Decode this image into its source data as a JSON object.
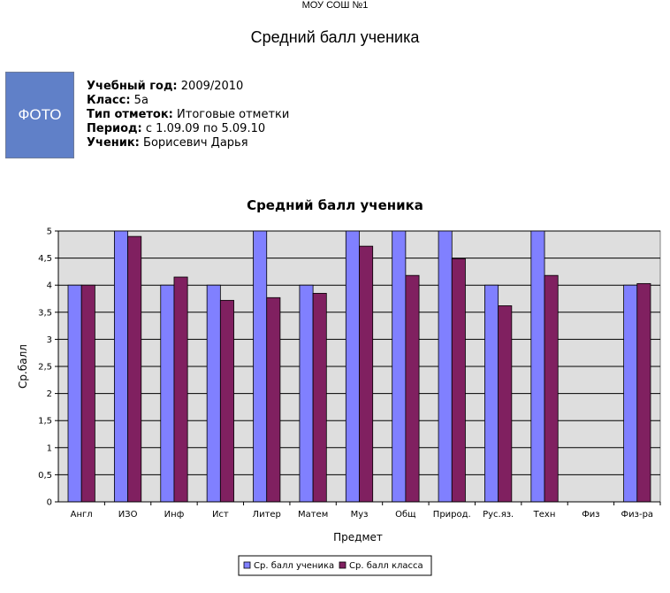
{
  "header": {
    "school": "МОУ СОШ №1",
    "title": "Средний балл ученика"
  },
  "photo": {
    "label": "ФОТО"
  },
  "info": [
    {
      "label": "Учебный год:",
      "value": "2009/2010"
    },
    {
      "label": "Класс:",
      "value": "5а"
    },
    {
      "label": "Тип отметок:",
      "value": "Итоговые отметки"
    },
    {
      "label": "Период:",
      "value": "с 1.09.09 по 5.09.10"
    },
    {
      "label": "Ученик:",
      "value": "Борисевич Дарья"
    }
  ],
  "chart_data": {
    "type": "bar",
    "title": "Средний балл ученика",
    "xlabel": "Предмет",
    "ylabel": "Ср.балл",
    "ylim": [
      0,
      5
    ],
    "yticks": [
      "0",
      "0,5",
      "1",
      "1,5",
      "2",
      "2,5",
      "3",
      "3,5",
      "4",
      "4,5",
      "5"
    ],
    "grid": true,
    "legend_position": "bottom",
    "categories": [
      "Англ",
      "ИЗО",
      "Инф",
      "Ист",
      "Литер",
      "Матем",
      "Муз",
      "Общ",
      "Природ.",
      "Рус.яз.",
      "Техн",
      "Физ",
      "Физ-ра"
    ],
    "series": [
      {
        "name": "Ср. балл ученика",
        "color": "#8080ff",
        "values": [
          4,
          5,
          4,
          4,
          5,
          4,
          5,
          5,
          5,
          4,
          5,
          null,
          4
        ]
      },
      {
        "name": "Ср. балл класса",
        "color": "#802060",
        "values": [
          4,
          4.9,
          4.15,
          3.72,
          3.77,
          3.85,
          4.72,
          4.18,
          4.49,
          3.62,
          4.18,
          null,
          4.03
        ]
      }
    ]
  }
}
